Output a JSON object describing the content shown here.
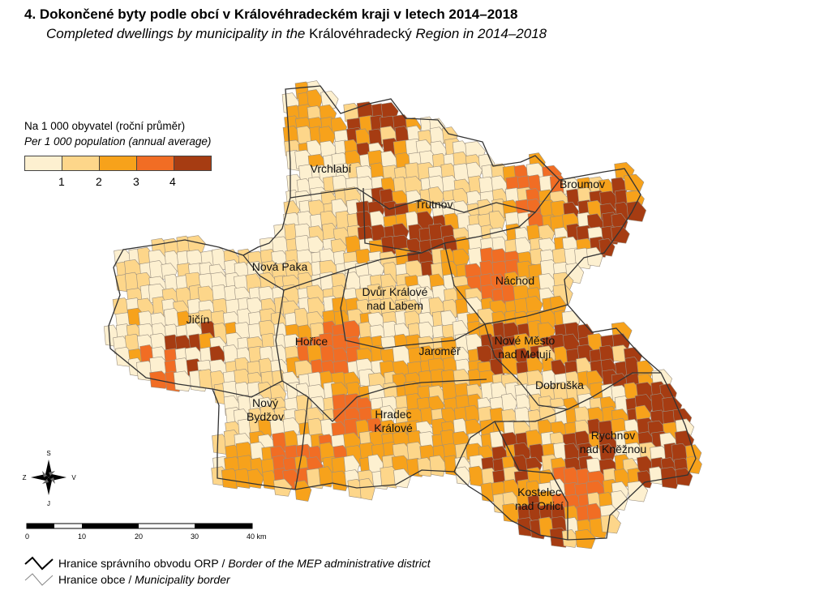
{
  "title": "4. Dokončené byty podle obcí v Královéhradeckém kraji v letech 2014–2018",
  "subtitle_parts": [
    "Completed dwellings by municipality in the ",
    "Královéhradecký",
    " Region in 2014–2018"
  ],
  "legend": {
    "title_cs": "Na 1 000 obyvatel (roční průměr)",
    "title_en": "Per 1 000 population (annual average)",
    "classes": [
      "#fdf0d0",
      "#fdd68a",
      "#f7a21b",
      "#f16d24",
      "#a63c12"
    ],
    "breaks": [
      "1",
      "2",
      "3",
      "4"
    ]
  },
  "compass": {
    "north": "S",
    "south": "J",
    "west": "Z",
    "east": "V"
  },
  "scale": {
    "labels": [
      "0",
      "10",
      "20",
      "30",
      "40 km"
    ]
  },
  "towns": [
    {
      "id": "vrchlabi",
      "name": [
        "Vrchlabí"
      ]
    },
    {
      "id": "trutnov",
      "name": [
        "Trutnov"
      ]
    },
    {
      "id": "broumov",
      "name": [
        "Broumov"
      ]
    },
    {
      "id": "nova-paka",
      "name": [
        "Nová Paka"
      ]
    },
    {
      "id": "dvur-kralove",
      "name": [
        "Dvůr Králové",
        "nad Labem"
      ]
    },
    {
      "id": "nachod",
      "name": [
        "Náchod"
      ]
    },
    {
      "id": "jicin",
      "name": [
        "Jičín"
      ]
    },
    {
      "id": "horice",
      "name": [
        "Hořice"
      ]
    },
    {
      "id": "jaromer",
      "name": [
        "Jaroměř"
      ]
    },
    {
      "id": "nove-mesto",
      "name": [
        "Nové Město",
        "nad Metují"
      ]
    },
    {
      "id": "dobruska",
      "name": [
        "Dobruška"
      ]
    },
    {
      "id": "novy-bydzov",
      "name": [
        "Nový",
        "Bydžov"
      ]
    },
    {
      "id": "hradec-kralove",
      "name": [
        "Hradec",
        "Králové"
      ]
    },
    {
      "id": "rychnov",
      "name": [
        "Rychnov",
        "nad Kněžnou"
      ]
    },
    {
      "id": "kostelec",
      "name": [
        "Kostelec",
        "nad Orlicí"
      ]
    }
  ],
  "border_legend": {
    "orp_cs": "Hranice správního obvodu ORP",
    "orp_en": "Border of the MEP administrative district",
    "obce_cs": "Hranice obce",
    "obce_en": "Municipality border",
    "separator": " / "
  }
}
